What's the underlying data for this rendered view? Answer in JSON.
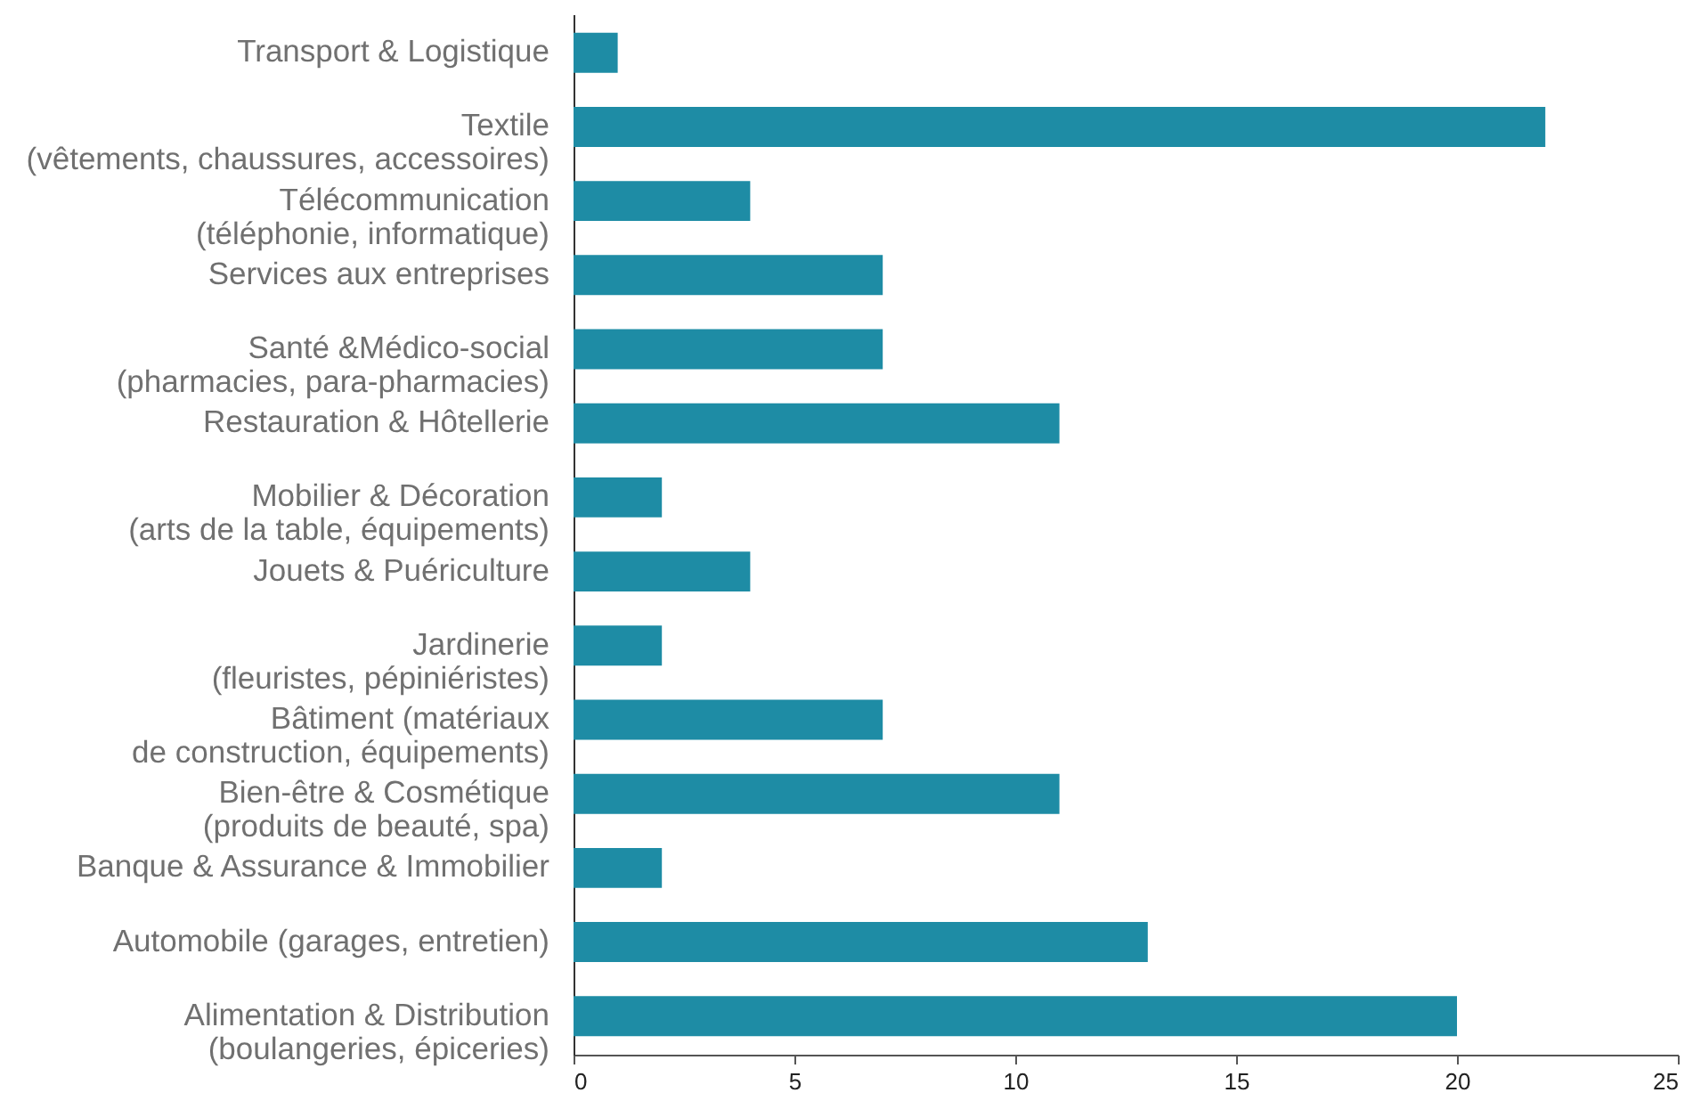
{
  "chart_data": {
    "type": "bar",
    "orientation": "horizontal",
    "color": "#1e8ca5",
    "categories": [
      "Transport & Logistique",
      "Textile\n(vêtements, chaussures, accessoires)",
      "Télécommunication\n(téléphonie, informatique)",
      "Services aux entreprises",
      "Santé &Médico-social\n(pharmacies, para-pharmacies)",
      "Restauration & Hôtellerie",
      "Mobilier & Décoration\n(arts de la table, équipements)",
      "Jouets & Puériculture",
      "Jardinerie\n(fleuristes, pépiniéristes)",
      "Bâtiment (matériaux\nde construction, équipements)",
      "Bien-être & Cosmétique\n(produits de beauté, spa)",
      "Banque & Assurance & Immobilier",
      "Automobile (garages, entretien)",
      "Alimentation & Distribution\n(boulangeries, épiceries)"
    ],
    "values": [
      1,
      22,
      4,
      7,
      7,
      11,
      2,
      4,
      2,
      7,
      11,
      2,
      13,
      20
    ],
    "xlim": [
      0,
      25
    ],
    "xticks": [
      0,
      5,
      10,
      15,
      20,
      25
    ]
  }
}
